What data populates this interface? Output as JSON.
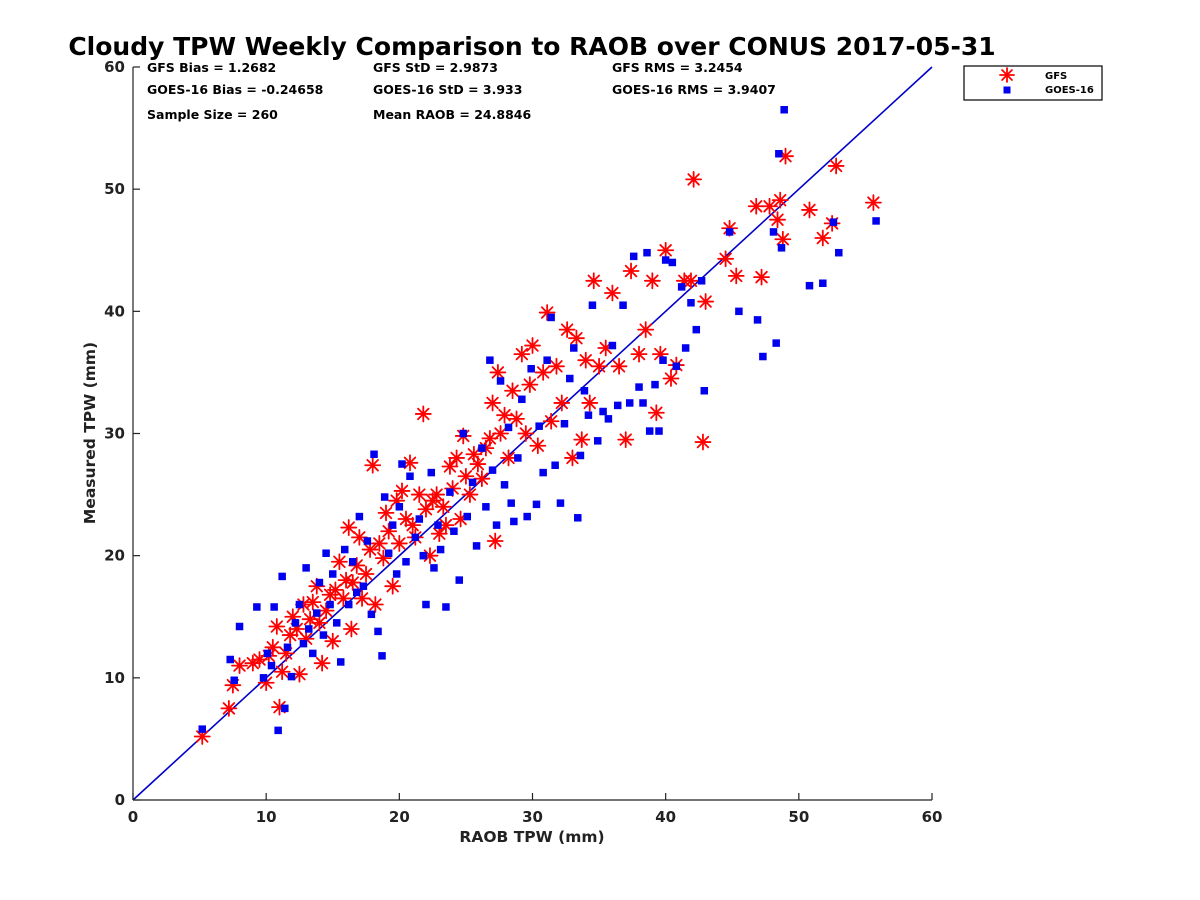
{
  "chart_data": {
    "type": "scatter",
    "title": "Cloudy TPW Weekly Comparison to RAOB over CONUS 2017-05-31",
    "xlabel": "RAOB TPW (mm)",
    "ylabel": "Measured TPW (mm)",
    "xlim": [
      0,
      60
    ],
    "ylim": [
      0,
      60
    ],
    "xticks": [
      0,
      10,
      20,
      30,
      40,
      50,
      60
    ],
    "yticks": [
      0,
      10,
      20,
      30,
      40,
      50,
      60
    ],
    "grid": false,
    "legend_position": "outside-top-right",
    "reference_line": {
      "x": [
        0,
        60
      ],
      "y": [
        0,
        60
      ],
      "color": "#0000cc"
    },
    "stats": [
      {
        "text": "GFS Bias = 1.2682"
      },
      {
        "text": "GFS StD = 2.9873"
      },
      {
        "text": "GFS RMS = 3.2454"
      },
      {
        "text": "GOES-16 Bias = -0.24658"
      },
      {
        "text": "GOES-16 StD = 3.933"
      },
      {
        "text": "GOES-16 RMS = 3.9407"
      },
      {
        "text": "Sample Size = 260"
      },
      {
        "text": "Mean RAOB = 24.8846"
      }
    ],
    "series": [
      {
        "name": "GFS",
        "marker": "asterisk",
        "color": "#ff0000",
        "points": [
          [
            5.2,
            5.2
          ],
          [
            7.2,
            7.5
          ],
          [
            7.5,
            9.4
          ],
          [
            8.0,
            11.0
          ],
          [
            9.0,
            11.2
          ],
          [
            9.5,
            11.5
          ],
          [
            10.0,
            9.6
          ],
          [
            10.2,
            11.8
          ],
          [
            10.5,
            12.5
          ],
          [
            10.8,
            14.2
          ],
          [
            11.0,
            7.6
          ],
          [
            11.2,
            10.5
          ],
          [
            11.5,
            12.0
          ],
          [
            11.8,
            13.5
          ],
          [
            12.0,
            15.0
          ],
          [
            12.3,
            14.0
          ],
          [
            12.5,
            10.3
          ],
          [
            12.8,
            16.0
          ],
          [
            13.0,
            13.2
          ],
          [
            13.3,
            14.8
          ],
          [
            13.5,
            16.2
          ],
          [
            13.8,
            17.5
          ],
          [
            14.0,
            14.5
          ],
          [
            14.2,
            11.2
          ],
          [
            14.5,
            15.5
          ],
          [
            14.8,
            16.8
          ],
          [
            15.0,
            13.0
          ],
          [
            15.2,
            17.2
          ],
          [
            15.5,
            19.5
          ],
          [
            15.8,
            16.5
          ],
          [
            16.0,
            18.0
          ],
          [
            16.2,
            22.3
          ],
          [
            16.4,
            14.0
          ],
          [
            16.5,
            17.8
          ],
          [
            16.8,
            19.2
          ],
          [
            17.0,
            21.5
          ],
          [
            17.2,
            16.5
          ],
          [
            17.5,
            18.5
          ],
          [
            17.8,
            20.5
          ],
          [
            18.0,
            27.4
          ],
          [
            18.2,
            16.0
          ],
          [
            18.5,
            21.0
          ],
          [
            18.8,
            19.8
          ],
          [
            19.0,
            23.5
          ],
          [
            19.2,
            22.0
          ],
          [
            19.5,
            17.5
          ],
          [
            19.8,
            24.5
          ],
          [
            20.0,
            21.0
          ],
          [
            20.2,
            25.3
          ],
          [
            20.5,
            23.0
          ],
          [
            20.8,
            27.6
          ],
          [
            21.0,
            22.5
          ],
          [
            21.2,
            21.5
          ],
          [
            21.5,
            25.0
          ],
          [
            21.8,
            31.6
          ],
          [
            22.0,
            23.8
          ],
          [
            22.3,
            20.0
          ],
          [
            22.5,
            24.5
          ],
          [
            22.8,
            25.0
          ],
          [
            23.0,
            21.8
          ],
          [
            23.3,
            24.0
          ],
          [
            23.5,
            22.5
          ],
          [
            23.8,
            27.3
          ],
          [
            24.0,
            25.5
          ],
          [
            24.3,
            28.0
          ],
          [
            24.6,
            23.0
          ],
          [
            24.8,
            29.8
          ],
          [
            25.0,
            26.5
          ],
          [
            25.3,
            25.0
          ],
          [
            25.6,
            28.3
          ],
          [
            25.9,
            27.5
          ],
          [
            26.2,
            26.3
          ],
          [
            26.5,
            28.8
          ],
          [
            26.8,
            29.6
          ],
          [
            27.0,
            32.5
          ],
          [
            27.2,
            21.2
          ],
          [
            27.4,
            35.0
          ],
          [
            27.6,
            30.0
          ],
          [
            27.9,
            31.5
          ],
          [
            28.2,
            28.0
          ],
          [
            28.5,
            33.5
          ],
          [
            28.8,
            31.2
          ],
          [
            29.2,
            36.5
          ],
          [
            29.5,
            30.0
          ],
          [
            29.8,
            34.0
          ],
          [
            30.0,
            37.2
          ],
          [
            30.4,
            29.0
          ],
          [
            30.8,
            35.0
          ],
          [
            31.1,
            39.9
          ],
          [
            31.4,
            31.0
          ],
          [
            31.8,
            35.5
          ],
          [
            32.2,
            32.5
          ],
          [
            32.6,
            38.5
          ],
          [
            33.0,
            28.0
          ],
          [
            33.3,
            37.8
          ],
          [
            33.7,
            29.5
          ],
          [
            34.0,
            36.0
          ],
          [
            34.3,
            32.5
          ],
          [
            34.6,
            42.5
          ],
          [
            35.0,
            35.5
          ],
          [
            35.5,
            37.0
          ],
          [
            36.0,
            41.5
          ],
          [
            36.5,
            35.5
          ],
          [
            37.0,
            29.5
          ],
          [
            37.4,
            43.3
          ],
          [
            38.0,
            36.5
          ],
          [
            38.5,
            38.5
          ],
          [
            39.0,
            42.5
          ],
          [
            39.3,
            31.7
          ],
          [
            39.6,
            36.5
          ],
          [
            40.0,
            45.0
          ],
          [
            40.4,
            34.5
          ],
          [
            40.8,
            35.6
          ],
          [
            41.4,
            42.5
          ],
          [
            41.9,
            42.5
          ],
          [
            42.1,
            50.8
          ],
          [
            42.8,
            29.3
          ],
          [
            43.0,
            40.8
          ],
          [
            44.5,
            44.3
          ],
          [
            44.8,
            46.8
          ],
          [
            45.3,
            42.9
          ],
          [
            46.8,
            48.6
          ],
          [
            47.2,
            42.8
          ],
          [
            47.8,
            48.6
          ],
          [
            48.4,
            47.5
          ],
          [
            48.6,
            49.1
          ],
          [
            48.8,
            45.9
          ],
          [
            49.0,
            52.7
          ],
          [
            50.8,
            48.3
          ],
          [
            51.8,
            46.0
          ],
          [
            52.5,
            47.2
          ],
          [
            52.8,
            51.9
          ],
          [
            55.6,
            48.9
          ]
        ]
      },
      {
        "name": "GOES-16",
        "marker": "square",
        "color": "#0000ee",
        "points": [
          [
            5.2,
            5.8
          ],
          [
            7.3,
            11.5
          ],
          [
            7.6,
            9.8
          ],
          [
            8.0,
            14.2
          ],
          [
            9.3,
            15.8
          ],
          [
            9.8,
            10.0
          ],
          [
            10.1,
            12.0
          ],
          [
            10.4,
            11.0
          ],
          [
            10.6,
            15.8
          ],
          [
            10.9,
            5.7
          ],
          [
            11.2,
            18.3
          ],
          [
            11.4,
            7.5
          ],
          [
            11.6,
            12.5
          ],
          [
            11.9,
            10.1
          ],
          [
            12.2,
            14.5
          ],
          [
            12.5,
            16.0
          ],
          [
            12.8,
            12.8
          ],
          [
            13.0,
            19.0
          ],
          [
            13.2,
            14.0
          ],
          [
            13.5,
            12.0
          ],
          [
            13.8,
            15.3
          ],
          [
            14.0,
            17.8
          ],
          [
            14.3,
            13.5
          ],
          [
            14.5,
            20.2
          ],
          [
            14.8,
            16.0
          ],
          [
            15.0,
            18.5
          ],
          [
            15.3,
            14.5
          ],
          [
            15.6,
            11.3
          ],
          [
            15.9,
            20.5
          ],
          [
            16.2,
            16.0
          ],
          [
            16.5,
            19.5
          ],
          [
            16.8,
            17.0
          ],
          [
            17.0,
            23.2
          ],
          [
            17.3,
            17.5
          ],
          [
            17.6,
            21.2
          ],
          [
            17.9,
            15.2
          ],
          [
            18.1,
            28.3
          ],
          [
            18.4,
            13.8
          ],
          [
            18.7,
            11.8
          ],
          [
            18.9,
            24.8
          ],
          [
            19.2,
            20.2
          ],
          [
            19.5,
            22.5
          ],
          [
            19.8,
            18.5
          ],
          [
            20.0,
            24.0
          ],
          [
            20.2,
            27.5
          ],
          [
            20.5,
            19.5
          ],
          [
            20.8,
            26.5
          ],
          [
            21.2,
            21.5
          ],
          [
            21.5,
            23.0
          ],
          [
            21.8,
            20.0
          ],
          [
            22.0,
            16.0
          ],
          [
            22.4,
            26.8
          ],
          [
            22.6,
            19.0
          ],
          [
            22.9,
            22.5
          ],
          [
            23.1,
            20.5
          ],
          [
            23.5,
            15.8
          ],
          [
            23.8,
            25.2
          ],
          [
            24.1,
            22.0
          ],
          [
            24.5,
            18.0
          ],
          [
            24.8,
            30.0
          ],
          [
            25.1,
            23.2
          ],
          [
            25.5,
            26.0
          ],
          [
            25.8,
            20.8
          ],
          [
            26.2,
            28.8
          ],
          [
            26.5,
            24.0
          ],
          [
            26.8,
            36.0
          ],
          [
            27.0,
            27.0
          ],
          [
            27.3,
            22.5
          ],
          [
            27.6,
            34.3
          ],
          [
            27.9,
            25.8
          ],
          [
            28.2,
            30.5
          ],
          [
            28.4,
            24.3
          ],
          [
            28.6,
            22.8
          ],
          [
            28.9,
            28.0
          ],
          [
            29.2,
            32.8
          ],
          [
            29.6,
            23.2
          ],
          [
            29.9,
            35.3
          ],
          [
            30.3,
            24.2
          ],
          [
            30.5,
            30.6
          ],
          [
            30.8,
            26.8
          ],
          [
            31.1,
            36.0
          ],
          [
            31.4,
            39.5
          ],
          [
            31.7,
            27.4
          ],
          [
            32.1,
            24.3
          ],
          [
            32.4,
            30.8
          ],
          [
            32.8,
            34.5
          ],
          [
            33.1,
            37.0
          ],
          [
            33.4,
            23.1
          ],
          [
            33.6,
            28.2
          ],
          [
            33.9,
            33.5
          ],
          [
            34.2,
            31.5
          ],
          [
            34.5,
            40.5
          ],
          [
            34.9,
            29.4
          ],
          [
            35.3,
            31.8
          ],
          [
            35.7,
            31.2
          ],
          [
            36.0,
            37.2
          ],
          [
            36.4,
            32.3
          ],
          [
            36.8,
            40.5
          ],
          [
            37.3,
            32.5
          ],
          [
            37.6,
            44.5
          ],
          [
            38.0,
            33.8
          ],
          [
            38.3,
            32.5
          ],
          [
            38.6,
            44.8
          ],
          [
            38.8,
            30.2
          ],
          [
            39.2,
            34.0
          ],
          [
            39.5,
            30.2
          ],
          [
            39.8,
            36.0
          ],
          [
            40.0,
            44.2
          ],
          [
            40.5,
            44.0
          ],
          [
            40.8,
            35.5
          ],
          [
            41.2,
            42.0
          ],
          [
            41.5,
            37.0
          ],
          [
            41.9,
            40.7
          ],
          [
            42.3,
            38.5
          ],
          [
            42.7,
            42.5
          ],
          [
            42.9,
            33.5
          ],
          [
            44.8,
            46.5
          ],
          [
            45.5,
            40.0
          ],
          [
            46.9,
            39.3
          ],
          [
            47.3,
            36.3
          ],
          [
            48.1,
            46.5
          ],
          [
            48.3,
            37.4
          ],
          [
            48.5,
            52.9
          ],
          [
            48.7,
            45.2
          ],
          [
            48.9,
            56.5
          ],
          [
            50.8,
            42.1
          ],
          [
            51.8,
            42.3
          ],
          [
            52.6,
            47.3
          ],
          [
            53.0,
            44.8
          ],
          [
            55.8,
            47.4
          ]
        ]
      }
    ]
  }
}
